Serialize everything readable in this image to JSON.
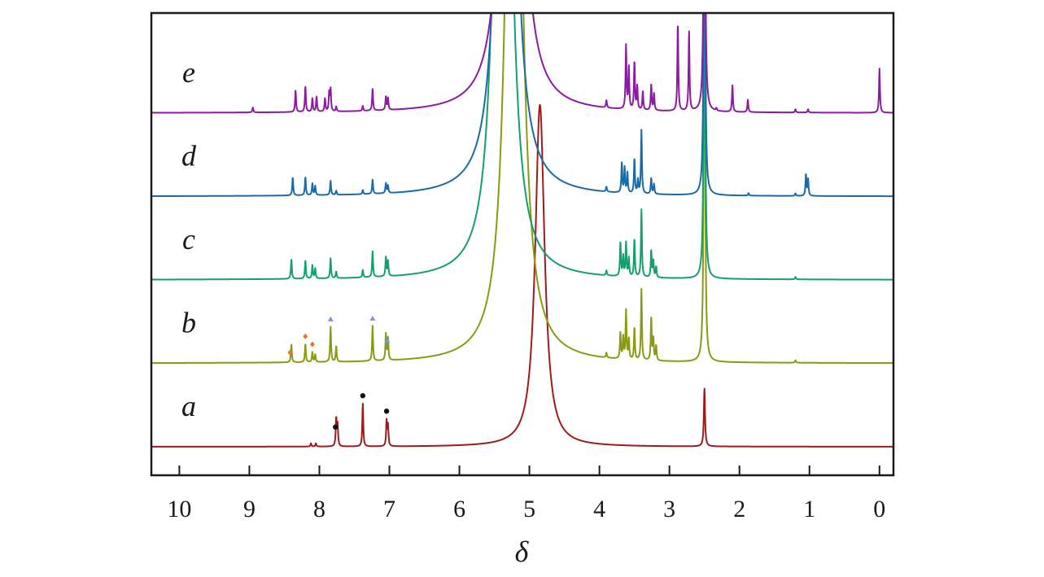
{
  "chart_data": {
    "type": "line",
    "title": "",
    "xlabel": "δ",
    "ylabel": "",
    "xlim": [
      10.4,
      -0.2
    ],
    "x_reversed": true,
    "x_ticks": [
      10,
      9,
      8,
      7,
      6,
      5,
      4,
      3,
      2,
      1,
      0
    ],
    "x_tick_labels": [
      "10",
      "9",
      "8",
      "7",
      "6",
      "5",
      "4",
      "3",
      "2",
      "1",
      "0"
    ],
    "grid": false,
    "series": [
      {
        "name": "a",
        "color": "#9b1c1c",
        "baseline": 0,
        "peaks": [
          {
            "ppm": 4.85,
            "height": 41,
            "width": 0.08
          },
          {
            "ppm": 2.5,
            "height": 7,
            "width": 0.01
          },
          {
            "ppm": 7.76,
            "height": 3.3,
            "width": 0.008
          },
          {
            "ppm": 7.74,
            "height": 2.6,
            "width": 0.008
          },
          {
            "ppm": 7.38,
            "height": 5.2,
            "width": 0.008
          },
          {
            "ppm": 7.04,
            "height": 3.0,
            "width": 0.008
          },
          {
            "ppm": 7.02,
            "height": 2.4,
            "width": 0.008
          },
          {
            "ppm": 8.12,
            "height": 0.4,
            "width": 0.008
          },
          {
            "ppm": 8.05,
            "height": 0.4,
            "width": 0.008
          }
        ],
        "markers": [
          {
            "ppm": 7.77,
            "symbol": "circle",
            "color": "#111111"
          },
          {
            "ppm": 7.38,
            "symbol": "circle",
            "color": "#111111"
          },
          {
            "ppm": 7.04,
            "symbol": "circle",
            "color": "#111111"
          }
        ]
      },
      {
        "name": "b",
        "color": "#8a9a12",
        "baseline": 10,
        "peaks": [
          {
            "ppm": 5.22,
            "height": 120,
            "width": 0.1
          },
          {
            "ppm": 2.5,
            "height": 60,
            "width": 0.01
          },
          {
            "ppm": 8.4,
            "height": 2.2,
            "width": 0.008
          },
          {
            "ppm": 8.2,
            "height": 2.2,
            "width": 0.008
          },
          {
            "ppm": 8.1,
            "height": 1.2,
            "width": 0.008
          },
          {
            "ppm": 8.06,
            "height": 0.9,
            "width": 0.008
          },
          {
            "ppm": 7.84,
            "height": 4.2,
            "width": 0.008
          },
          {
            "ppm": 7.76,
            "height": 1.9,
            "width": 0.008
          },
          {
            "ppm": 7.24,
            "height": 4.2,
            "width": 0.008
          },
          {
            "ppm": 7.05,
            "height": 3.2,
            "width": 0.008
          },
          {
            "ppm": 7.02,
            "height": 2.6,
            "width": 0.008
          },
          {
            "ppm": 3.9,
            "height": 0.6,
            "width": 0.008
          },
          {
            "ppm": 3.7,
            "height": 3.2,
            "width": 0.008
          },
          {
            "ppm": 3.66,
            "height": 2.6,
            "width": 0.008
          },
          {
            "ppm": 3.62,
            "height": 5.8,
            "width": 0.008
          },
          {
            "ppm": 3.58,
            "height": 2.4,
            "width": 0.008
          },
          {
            "ppm": 3.5,
            "height": 3.9,
            "width": 0.008
          },
          {
            "ppm": 3.4,
            "height": 8.5,
            "width": 0.008
          },
          {
            "ppm": 3.26,
            "height": 5.1,
            "width": 0.008
          },
          {
            "ppm": 3.23,
            "height": 2.6,
            "width": 0.008
          },
          {
            "ppm": 3.19,
            "height": 1.8,
            "width": 0.008
          },
          {
            "ppm": 1.2,
            "height": 0.3,
            "width": 0.008
          }
        ],
        "markers": [
          {
            "ppm": 8.42,
            "symbol": "diamond",
            "color": "#e8742c"
          },
          {
            "ppm": 8.2,
            "symbol": "diamond",
            "color": "#e8742c"
          },
          {
            "ppm": 8.1,
            "symbol": "diamond",
            "color": "#e8742c"
          },
          {
            "ppm": 7.84,
            "symbol": "triangle",
            "color": "#7b97d8"
          },
          {
            "ppm": 7.24,
            "symbol": "triangle",
            "color": "#7b97d8"
          },
          {
            "ppm": 7.03,
            "symbol": "triangle",
            "color": "#7b97d8"
          }
        ]
      },
      {
        "name": "c",
        "color": "#14a06a",
        "baseline": 20,
        "peaks": [
          {
            "ppm": 5.38,
            "height": 120,
            "width": 0.1
          },
          {
            "ppm": 2.5,
            "height": 60,
            "width": 0.01
          },
          {
            "ppm": 8.4,
            "height": 2.4,
            "width": 0.008
          },
          {
            "ppm": 8.2,
            "height": 2.2,
            "width": 0.008
          },
          {
            "ppm": 8.1,
            "height": 1.6,
            "width": 0.008
          },
          {
            "ppm": 8.06,
            "height": 1.2,
            "width": 0.008
          },
          {
            "ppm": 7.84,
            "height": 2.4,
            "width": 0.008
          },
          {
            "ppm": 7.76,
            "height": 0.8,
            "width": 0.008
          },
          {
            "ppm": 7.38,
            "height": 0.9,
            "width": 0.008
          },
          {
            "ppm": 7.24,
            "height": 3.1,
            "width": 0.008
          },
          {
            "ppm": 7.05,
            "height": 2.3,
            "width": 0.008
          },
          {
            "ppm": 7.02,
            "height": 1.8,
            "width": 0.008
          },
          {
            "ppm": 3.9,
            "height": 0.6,
            "width": 0.008
          },
          {
            "ppm": 3.7,
            "height": 4.1,
            "width": 0.008
          },
          {
            "ppm": 3.66,
            "height": 2.4,
            "width": 0.008
          },
          {
            "ppm": 3.62,
            "height": 4.0,
            "width": 0.008
          },
          {
            "ppm": 3.58,
            "height": 2.2,
            "width": 0.008
          },
          {
            "ppm": 3.5,
            "height": 4.6,
            "width": 0.008
          },
          {
            "ppm": 3.4,
            "height": 8.1,
            "width": 0.008
          },
          {
            "ppm": 3.26,
            "height": 3.2,
            "width": 0.008
          },
          {
            "ppm": 3.23,
            "height": 2.0,
            "width": 0.008
          },
          {
            "ppm": 3.19,
            "height": 1.3,
            "width": 0.008
          },
          {
            "ppm": 1.2,
            "height": 0.3,
            "width": 0.008
          }
        ],
        "markers": []
      },
      {
        "name": "d",
        "color": "#1a6aa8",
        "baseline": 30,
        "peaks": [
          {
            "ppm": 5.33,
            "height": 120,
            "width": 0.1
          },
          {
            "ppm": 2.5,
            "height": 60,
            "width": 0.01
          },
          {
            "ppm": 8.38,
            "height": 2.2,
            "width": 0.008
          },
          {
            "ppm": 8.2,
            "height": 2.2,
            "width": 0.008
          },
          {
            "ppm": 8.1,
            "height": 1.4,
            "width": 0.008
          },
          {
            "ppm": 8.06,
            "height": 1.1,
            "width": 0.008
          },
          {
            "ppm": 7.84,
            "height": 1.7,
            "width": 0.008
          },
          {
            "ppm": 7.76,
            "height": 0.5,
            "width": 0.008
          },
          {
            "ppm": 7.38,
            "height": 0.5,
            "width": 0.008
          },
          {
            "ppm": 7.24,
            "height": 1.7,
            "width": 0.008
          },
          {
            "ppm": 7.05,
            "height": 1.2,
            "width": 0.008
          },
          {
            "ppm": 7.02,
            "height": 0.9,
            "width": 0.008
          },
          {
            "ppm": 3.9,
            "height": 0.6,
            "width": 0.008
          },
          {
            "ppm": 3.68,
            "height": 3.6,
            "width": 0.008
          },
          {
            "ppm": 3.64,
            "height": 3.0,
            "width": 0.008
          },
          {
            "ppm": 3.6,
            "height": 2.4,
            "width": 0.008
          },
          {
            "ppm": 3.5,
            "height": 4.2,
            "width": 0.008
          },
          {
            "ppm": 3.45,
            "height": 1.6,
            "width": 0.008
          },
          {
            "ppm": 3.4,
            "height": 7.6,
            "width": 0.008
          },
          {
            "ppm": 3.26,
            "height": 1.9,
            "width": 0.008
          },
          {
            "ppm": 3.22,
            "height": 1.2,
            "width": 0.008
          },
          {
            "ppm": 1.87,
            "height": 0.3,
            "width": 0.008
          },
          {
            "ppm": 1.2,
            "height": 0.3,
            "width": 0.008
          },
          {
            "ppm": 1.05,
            "height": 2.6,
            "width": 0.008
          },
          {
            "ppm": 1.02,
            "height": 2.0,
            "width": 0.008
          }
        ],
        "markers": []
      },
      {
        "name": "e",
        "color": "#8c1aa2",
        "baseline": 40,
        "peaks": [
          {
            "ppm": 5.25,
            "height": 120,
            "width": 0.1
          },
          {
            "ppm": 2.5,
            "height": 60,
            "width": 0.01
          },
          {
            "ppm": 8.95,
            "height": 0.6,
            "width": 0.008
          },
          {
            "ppm": 8.34,
            "height": 2.6,
            "width": 0.008
          },
          {
            "ppm": 8.2,
            "height": 3.1,
            "width": 0.008
          },
          {
            "ppm": 8.1,
            "height": 1.6,
            "width": 0.008
          },
          {
            "ppm": 8.04,
            "height": 1.8,
            "width": 0.008
          },
          {
            "ppm": 7.92,
            "height": 1.6,
            "width": 0.008
          },
          {
            "ppm": 7.86,
            "height": 2.2,
            "width": 0.008
          },
          {
            "ppm": 7.84,
            "height": 2.6,
            "width": 0.008
          },
          {
            "ppm": 7.76,
            "height": 0.6,
            "width": 0.008
          },
          {
            "ppm": 7.38,
            "height": 0.6,
            "width": 0.008
          },
          {
            "ppm": 7.24,
            "height": 2.6,
            "width": 0.008
          },
          {
            "ppm": 7.05,
            "height": 1.6,
            "width": 0.008
          },
          {
            "ppm": 7.02,
            "height": 1.4,
            "width": 0.008
          },
          {
            "ppm": 3.9,
            "height": 0.9,
            "width": 0.008
          },
          {
            "ppm": 3.62,
            "height": 7.6,
            "width": 0.008
          },
          {
            "ppm": 3.58,
            "height": 5.0,
            "width": 0.008
          },
          {
            "ppm": 3.5,
            "height": 5.8,
            "width": 0.008
          },
          {
            "ppm": 3.46,
            "height": 2.8,
            "width": 0.008
          },
          {
            "ppm": 3.38,
            "height": 2.2,
            "width": 0.008
          },
          {
            "ppm": 3.26,
            "height": 3.1,
            "width": 0.008
          },
          {
            "ppm": 3.22,
            "height": 2.0,
            "width": 0.008
          },
          {
            "ppm": 2.88,
            "height": 10.7,
            "width": 0.008
          },
          {
            "ppm": 2.72,
            "height": 9.6,
            "width": 0.008
          },
          {
            "ppm": 2.33,
            "height": 0.3,
            "width": 0.008
          },
          {
            "ppm": 2.1,
            "height": 3.2,
            "width": 0.008
          },
          {
            "ppm": 1.88,
            "height": 1.5,
            "width": 0.008
          },
          {
            "ppm": 1.2,
            "height": 0.4,
            "width": 0.008
          },
          {
            "ppm": 1.02,
            "height": 0.4,
            "width": 0.008
          },
          {
            "ppm": 0.0,
            "height": 5.3,
            "width": 0.008
          }
        ],
        "markers": []
      }
    ]
  }
}
